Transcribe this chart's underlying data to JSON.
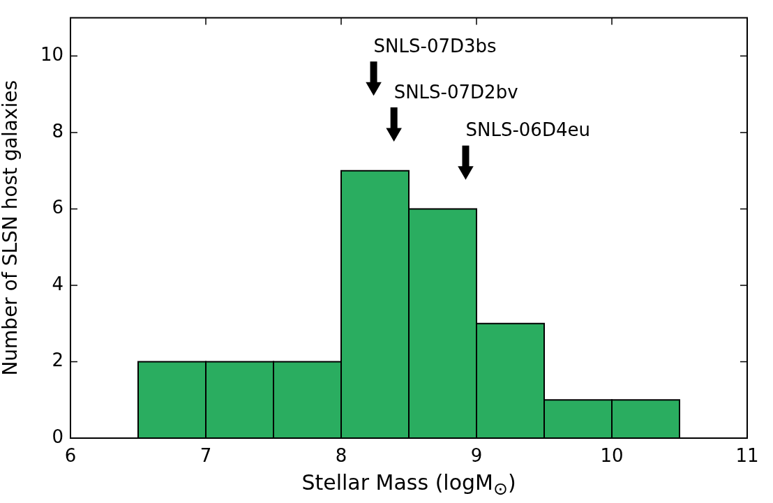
{
  "chart_data": {
    "type": "histogram",
    "xlabel": "Stellar Mass (logM$_{⊙}$)",
    "ylabel": "Number of SLSN host galaxies",
    "bins": [
      6.5,
      7,
      7.5,
      8,
      8.5,
      9,
      9.5,
      10,
      10.5
    ],
    "values": [
      2,
      2,
      2,
      7,
      6,
      3,
      1,
      1
    ],
    "color": "#2aad60",
    "series": [
      {
        "type": "scatter",
        "color": "#000000",
        "x": [
          8.24,
          8.39,
          8.92
        ],
        "values": [
          9.2,
          8.0,
          7.0
        ]
      }
    ],
    "marker": "triangle",
    "xlim": [
      6,
      11
    ],
    "xticks": [
      6,
      7,
      8,
      9,
      10,
      11
    ],
    "ylim": [
      0,
      11
    ],
    "yticks": [
      0,
      2,
      4,
      6,
      8,
      10
    ],
    "annotations": [
      {
        "text": "SNLS-07D3bs",
        "x": 8.24,
        "y": 9.2
      },
      {
        "text": "SNLS-07D2bv",
        "x": 8.39,
        "y": 8.0
      },
      {
        "text": "SNLS-06D4eu",
        "x": 8.92,
        "y": 7.0
      }
    ]
  }
}
